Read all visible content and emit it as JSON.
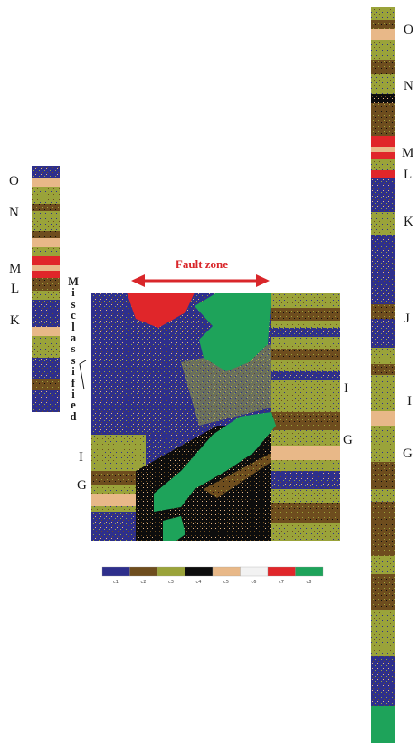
{
  "title": "Fault zone",
  "misclassified_label": "Misclassified",
  "left_log_labels": [
    "O",
    "N",
    "M",
    "L",
    "K"
  ],
  "right_log_labels": [
    "O",
    "N",
    "M",
    "L",
    "K",
    "J",
    "I",
    "G"
  ],
  "section_right_labels": [
    "I",
    "G"
  ],
  "section_left_labels": [
    "I",
    "G"
  ],
  "facies_legend": [
    {
      "label": "c1",
      "color": "#2e2f8c"
    },
    {
      "label": "c2",
      "color": "#6e4d1e"
    },
    {
      "label": "c3",
      "color": "#9aa33a"
    },
    {
      "label": "c4",
      "color": "#0d0d0d"
    },
    {
      "label": "c5",
      "color": "#e8b888"
    },
    {
      "label": "c6",
      "color": "#f2f2f2"
    },
    {
      "label": "c7",
      "color": "#e0262a"
    },
    {
      "label": "c8",
      "color": "#1ea35a"
    }
  ],
  "colors": {
    "blue": "#2e2f8c",
    "brown": "#6e4d1e",
    "olive": "#9aa33a",
    "black": "#0d0d0d",
    "peach": "#e8b888",
    "white": "#f2f2f2",
    "red": "#e0262a",
    "green": "#1ea35a"
  }
}
